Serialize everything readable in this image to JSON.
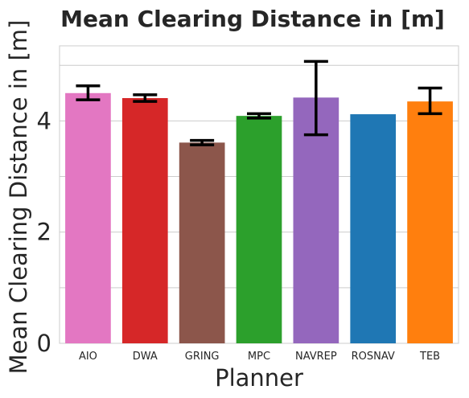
{
  "chart_data": {
    "type": "bar",
    "title": "Mean Clearing Distance in [m]",
    "xlabel": "Planner",
    "ylabel": "Mean Clearing Distance in [m]",
    "categories": [
      "AIO",
      "DWA",
      "GRING",
      "MPC",
      "NAVREP",
      "ROSNAV",
      "TEB"
    ],
    "values": [
      4.5,
      4.41,
      3.61,
      4.09,
      4.42,
      4.12,
      4.35
    ],
    "error_low": [
      4.38,
      4.35,
      3.57,
      4.05,
      3.75,
      null,
      4.13
    ],
    "error_high": [
      4.63,
      4.47,
      3.65,
      4.13,
      5.07,
      null,
      4.59
    ],
    "colors": [
      "#e377c2",
      "#d62728",
      "#8c564b",
      "#2ca02c",
      "#9467bd",
      "#1f77b4",
      "#ff7f0e"
    ],
    "ylim": [
      0,
      5.35
    ],
    "yticks": [
      0,
      1,
      2,
      3,
      4,
      5
    ],
    "ytick_labels": [
      "0",
      "",
      "2",
      "",
      "4",
      ""
    ],
    "grid": true,
    "legend": false
  }
}
